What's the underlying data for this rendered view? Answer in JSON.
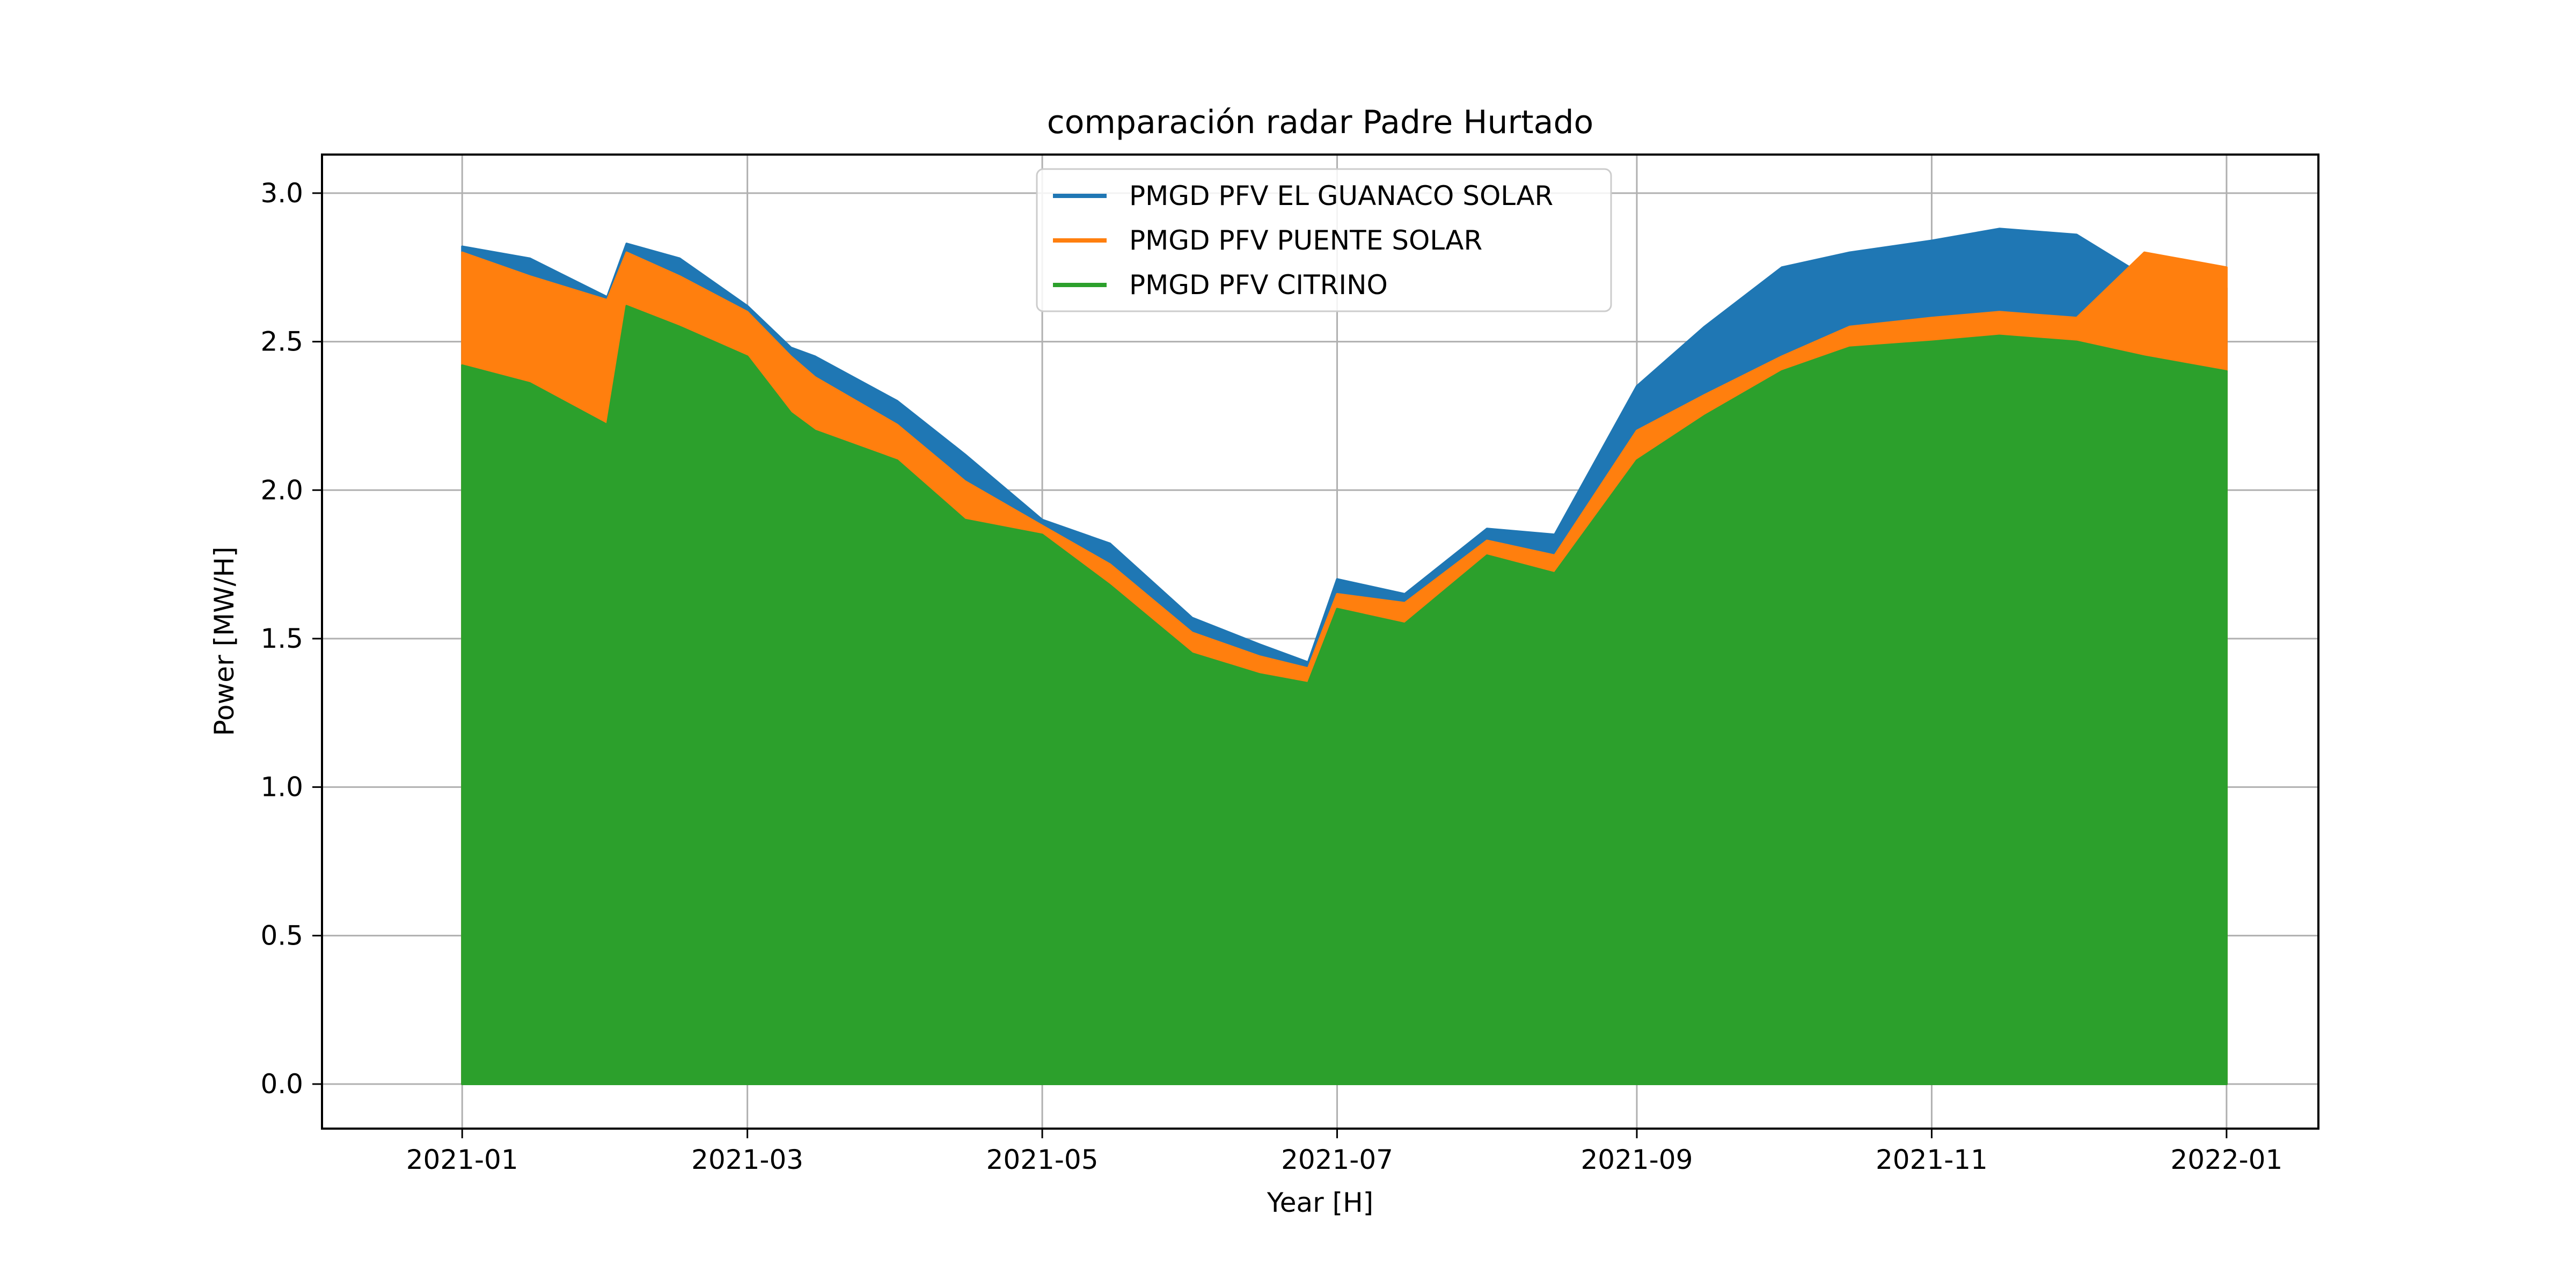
{
  "chart_data": {
    "type": "line",
    "title": "comparación radar Padre Hurtado",
    "xlabel": "Year [H]",
    "ylabel": "Power [MW/H]",
    "xlim": [
      "2020-12-03",
      "2022-01-20"
    ],
    "ylim": [
      -0.15,
      3.13
    ],
    "xticks": [
      {
        "date": "2021-01-01",
        "label": "2021-01"
      },
      {
        "date": "2021-03-01",
        "label": "2021-03"
      },
      {
        "date": "2021-05-01",
        "label": "2021-05"
      },
      {
        "date": "2021-07-01",
        "label": "2021-07"
      },
      {
        "date": "2021-09-01",
        "label": "2021-09"
      },
      {
        "date": "2021-11-01",
        "label": "2021-11"
      },
      {
        "date": "2022-01-01",
        "label": "2022-01"
      }
    ],
    "yticks": [
      {
        "value": 0.0,
        "label": "0.0"
      },
      {
        "value": 0.5,
        "label": "0.5"
      },
      {
        "value": 1.0,
        "label": "1.0"
      },
      {
        "value": 1.5,
        "label": "1.5"
      },
      {
        "value": 2.0,
        "label": "2.0"
      },
      {
        "value": 2.5,
        "label": "2.5"
      },
      {
        "value": 3.0,
        "label": "3.0"
      }
    ],
    "grid": true,
    "legend_position": "upper center",
    "series": [
      {
        "name": "PMGD PFV EL GUANACO SOLAR",
        "color": "#1f77b4",
        "points": [
          [
            "2021-01-01",
            2.82
          ],
          [
            "2021-01-15",
            2.78
          ],
          [
            "2021-01-31",
            2.65
          ],
          [
            "2021-02-04",
            2.83
          ],
          [
            "2021-02-15",
            2.78
          ],
          [
            "2021-03-01",
            2.62
          ],
          [
            "2021-03-10",
            2.48
          ],
          [
            "2021-03-15",
            2.45
          ],
          [
            "2021-04-01",
            2.3
          ],
          [
            "2021-04-15",
            2.12
          ],
          [
            "2021-05-01",
            1.9
          ],
          [
            "2021-05-15",
            1.82
          ],
          [
            "2021-06-01",
            1.57
          ],
          [
            "2021-06-15",
            1.48
          ],
          [
            "2021-06-25",
            1.42
          ],
          [
            "2021-07-01",
            1.7
          ],
          [
            "2021-07-15",
            1.65
          ],
          [
            "2021-08-01",
            1.87
          ],
          [
            "2021-08-15",
            1.85
          ],
          [
            "2021-09-01",
            2.35
          ],
          [
            "2021-09-15",
            2.55
          ],
          [
            "2021-10-01",
            2.75
          ],
          [
            "2021-10-15",
            2.8
          ],
          [
            "2021-11-01",
            2.84
          ],
          [
            "2021-11-15",
            2.88
          ],
          [
            "2021-12-01",
            2.86
          ],
          [
            "2021-12-15",
            2.72
          ],
          [
            "2022-01-01",
            2.68
          ]
        ]
      },
      {
        "name": "PMGD PFV PUENTE SOLAR",
        "color": "#ff7f0e",
        "points": [
          [
            "2021-01-01",
            2.8
          ],
          [
            "2021-01-15",
            2.72
          ],
          [
            "2021-01-31",
            2.64
          ],
          [
            "2021-02-04",
            2.8
          ],
          [
            "2021-02-15",
            2.72
          ],
          [
            "2021-03-01",
            2.6
          ],
          [
            "2021-03-10",
            2.45
          ],
          [
            "2021-03-15",
            2.38
          ],
          [
            "2021-04-01",
            2.22
          ],
          [
            "2021-04-15",
            2.03
          ],
          [
            "2021-05-01",
            1.88
          ],
          [
            "2021-05-15",
            1.75
          ],
          [
            "2021-06-01",
            1.52
          ],
          [
            "2021-06-15",
            1.44
          ],
          [
            "2021-06-25",
            1.4
          ],
          [
            "2021-07-01",
            1.65
          ],
          [
            "2021-07-15",
            1.62
          ],
          [
            "2021-08-01",
            1.83
          ],
          [
            "2021-08-15",
            1.78
          ],
          [
            "2021-09-01",
            2.2
          ],
          [
            "2021-09-15",
            2.32
          ],
          [
            "2021-10-01",
            2.45
          ],
          [
            "2021-10-15",
            2.55
          ],
          [
            "2021-11-01",
            2.58
          ],
          [
            "2021-11-15",
            2.6
          ],
          [
            "2021-12-01",
            2.58
          ],
          [
            "2021-12-15",
            2.8
          ],
          [
            "2022-01-01",
            2.75
          ]
        ]
      },
      {
        "name": "PMGD PFV CITRINO",
        "color": "#2ca02c",
        "points": [
          [
            "2021-01-01",
            2.42
          ],
          [
            "2021-01-15",
            2.36
          ],
          [
            "2021-01-31",
            2.22
          ],
          [
            "2021-02-04",
            2.62
          ],
          [
            "2021-02-15",
            2.55
          ],
          [
            "2021-03-01",
            2.45
          ],
          [
            "2021-03-10",
            2.26
          ],
          [
            "2021-03-15",
            2.2
          ],
          [
            "2021-04-01",
            2.1
          ],
          [
            "2021-04-15",
            1.9
          ],
          [
            "2021-05-01",
            1.85
          ],
          [
            "2021-05-15",
            1.68
          ],
          [
            "2021-06-01",
            1.45
          ],
          [
            "2021-06-15",
            1.38
          ],
          [
            "2021-06-25",
            1.35
          ],
          [
            "2021-07-01",
            1.6
          ],
          [
            "2021-07-15",
            1.55
          ],
          [
            "2021-08-01",
            1.78
          ],
          [
            "2021-08-15",
            1.72
          ],
          [
            "2021-09-01",
            2.1
          ],
          [
            "2021-09-15",
            2.25
          ],
          [
            "2021-10-01",
            2.4
          ],
          [
            "2021-10-15",
            2.48
          ],
          [
            "2021-11-01",
            2.5
          ],
          [
            "2021-11-15",
            2.52
          ],
          [
            "2021-12-01",
            2.5
          ],
          [
            "2021-12-15",
            2.45
          ],
          [
            "2022-01-01",
            2.4
          ]
        ]
      }
    ]
  }
}
